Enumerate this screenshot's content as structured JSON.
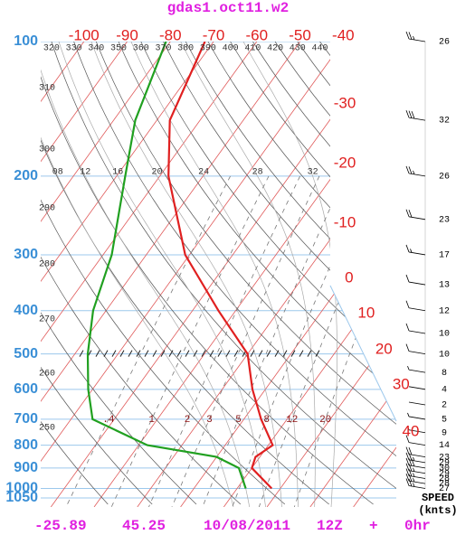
{
  "chart_data": {
    "type": "skewt",
    "title": "gdas1.oct11.w2",
    "ylim": [
      100,
      1100
    ],
    "ylog": true,
    "yticks": [
      100,
      200,
      300,
      400,
      500,
      600,
      700,
      800,
      900,
      1000,
      1050
    ],
    "xlim": [
      -110,
      -43
    ],
    "xticks": [
      -100,
      -90,
      -80,
      -70,
      -60,
      -50,
      -40,
      -30,
      -20,
      -10,
      0,
      10,
      20,
      30,
      40
    ],
    "pressure": [
      100,
      150,
      200,
      300,
      400,
      500,
      600,
      700,
      800,
      850,
      900,
      1000
    ],
    "series": [
      {
        "color": "#e02020",
        "values": [
          -72,
          -67,
          -58,
          -41,
          -24,
          -10,
          -3,
          4,
          11,
          9,
          10,
          18
        ]
      },
      {
        "color": "#20a020",
        "values": [
          -81,
          -75,
          -68,
          -58,
          -53,
          -47,
          -41,
          -35,
          -18,
          0,
          7,
          12
        ]
      }
    ],
    "dry_adiabats": [
      250,
      260,
      270,
      280,
      290,
      300,
      310,
      320,
      330,
      340,
      350,
      360,
      370,
      380,
      390,
      400,
      410,
      420,
      430,
      440
    ],
    "moist_adiabats": [
      {
        "value": 8,
        "label": "08"
      },
      12,
      16,
      20,
      24,
      28,
      32
    ],
    "mixing_ratios": [
      {
        "value": 0.4,
        "label": ".4"
      },
      1,
      2,
      3,
      5,
      8,
      12,
      20
    ],
    "wind": {
      "pressure": [
        100,
        150,
        200,
        250,
        300,
        350,
        400,
        450,
        500,
        550,
        600,
        650,
        700,
        750,
        800,
        850,
        875,
        900,
        925,
        950,
        975,
        1000
      ],
      "speeds": [
        26,
        32,
        26,
        23,
        17,
        13,
        12,
        10,
        10,
        8,
        4,
        2,
        5,
        9,
        14,
        23,
        29,
        30,
        29,
        28,
        28,
        27
      ],
      "label": "SPEED",
      "units": "(knts)"
    },
    "footer": {
      "lat": -25.89,
      "lon": 45.25,
      "date": "10/08/2011",
      "time": "12Z",
      "plus": "+",
      "forecast": "0hr"
    }
  }
}
